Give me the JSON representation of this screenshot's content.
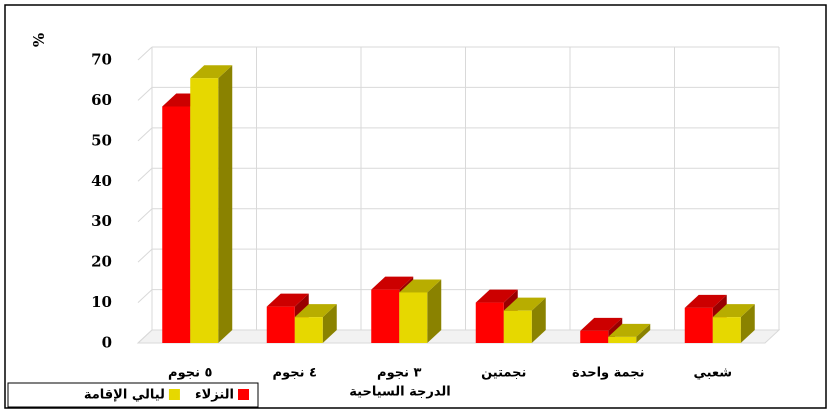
{
  "chart_data": {
    "type": "bar3d",
    "y_label": "%",
    "x_label": "الدرجة السياحية",
    "categories": [
      "٥ نجوم",
      "٤ نجوم",
      "٣ نجوم",
      "نجمتين",
      "نجمة واحدة",
      "شعبي"
    ],
    "series": [
      {
        "name": "النزلاء",
        "color": "#ff0000",
        "values": [
          58.5,
          9,
          13.2,
          10,
          3,
          8.7
        ]
      },
      {
        "name": "ليالي الإقامة",
        "color": "#e6d800",
        "values": [
          65.5,
          6.4,
          12.5,
          8,
          1.5,
          6.4
        ]
      }
    ],
    "ylim": [
      0,
      70
    ],
    "yticks": [
      0,
      10,
      20,
      30,
      40,
      50,
      60,
      70
    ],
    "grid": true
  }
}
